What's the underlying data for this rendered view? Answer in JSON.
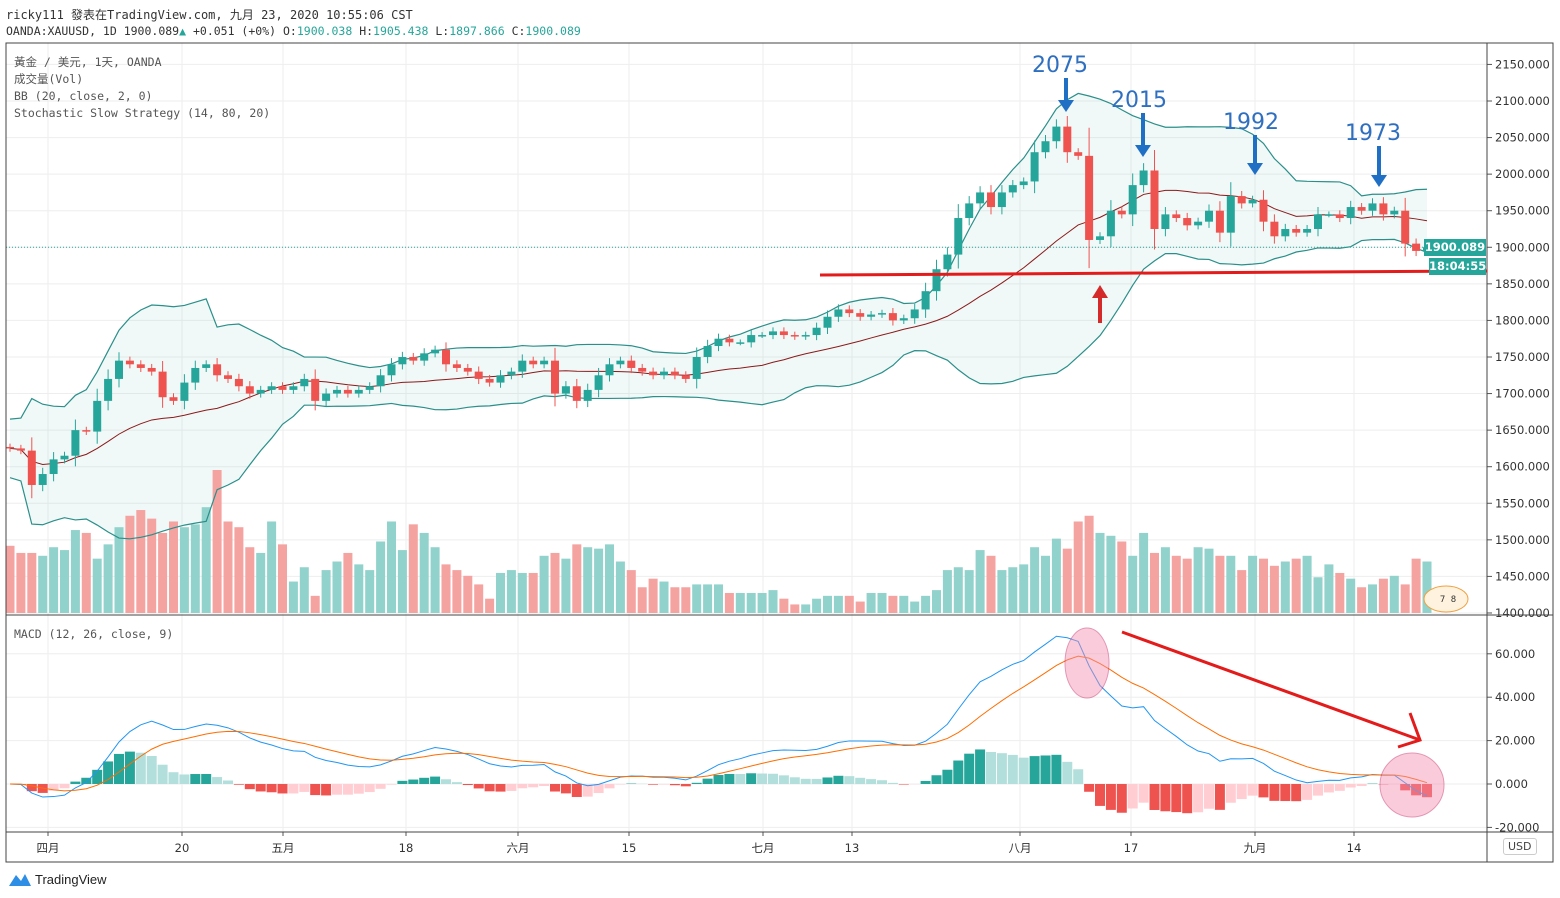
{
  "header": {
    "published": "ricky111 發表在TradingView.com, 九月 23, 2020 10:55:06 CST",
    "symbol": "OANDA:XAUUSD, 1D 1900.089",
    "change": "+0.051 (+0%)",
    "o_label": "O:",
    "o": "1900.038",
    "h_label": "H:",
    "h": "1905.438",
    "l_label": "L:",
    "l": "1897.866",
    "c_label": "C:",
    "c": "1900.089"
  },
  "legend": [
    "黃金 / 美元, 1天, OANDA",
    "成交量(Vol)",
    "BB (20, close, 2, 0)",
    "Stochastic Slow Strategy (14, 80, 20)"
  ],
  "macd_legend": "MACD (12, 26, close, 9)",
  "currency": "USD",
  "last_price": "1900.089",
  "countdown": "18:04:55",
  "event_badge": "7 8",
  "annotations": {
    "peaks": [
      "2075",
      "2015",
      "1992",
      "1973"
    ]
  },
  "logo": "TradingView",
  "colors": {
    "up": "#26a69a",
    "down": "#ef5350",
    "bb": "#2a8f8a",
    "basis": "#8b1a1a",
    "macd": "#2196f3",
    "signal": "#ff6d00",
    "support": "#e31b1b",
    "annotation": "#2f6fc0"
  },
  "chart_data": {
    "type": "candlestick",
    "symbol": "XAUUSD",
    "timeframe": "1D",
    "x_tick_labels": [
      "四月",
      "20",
      "五月",
      "18",
      "六月",
      "15",
      "七月",
      "13",
      "八月",
      "17",
      "九月",
      "14"
    ],
    "price_axis": {
      "ticks": [
        "2150.000",
        "2100.000",
        "2050.000",
        "2000.000",
        "1950.000",
        "1900.000",
        "1850.000",
        "1800.000",
        "1750.000",
        "1700.000",
        "1650.000",
        "1600.000",
        "1550.000",
        "1500.000",
        "1450.000",
        "1400.000"
      ],
      "range": [
        1400,
        2150
      ]
    },
    "macd_axis": {
      "ticks": [
        "60.000",
        "40.000",
        "20.000",
        "0.000",
        "-20.000"
      ],
      "range": [
        -20,
        70
      ]
    },
    "close": [
      1625,
      1622,
      1575,
      1590,
      1610,
      1615,
      1650,
      1648,
      1690,
      1720,
      1745,
      1740,
      1735,
      1730,
      1695,
      1690,
      1715,
      1735,
      1740,
      1725,
      1720,
      1710,
      1700,
      1705,
      1710,
      1705,
      1710,
      1720,
      1690,
      1700,
      1705,
      1700,
      1705,
      1710,
      1725,
      1740,
      1750,
      1745,
      1755,
      1760,
      1740,
      1735,
      1730,
      1720,
      1715,
      1725,
      1730,
      1745,
      1740,
      1745,
      1700,
      1710,
      1690,
      1705,
      1725,
      1740,
      1745,
      1735,
      1730,
      1725,
      1730,
      1725,
      1720,
      1750,
      1765,
      1775,
      1770,
      1770,
      1780,
      1780,
      1785,
      1780,
      1778,
      1780,
      1790,
      1805,
      1815,
      1810,
      1805,
      1808,
      1810,
      1800,
      1803,
      1815,
      1840,
      1870,
      1890,
      1940,
      1960,
      1975,
      1955,
      1975,
      1985,
      1990,
      2030,
      2045,
      2065,
      2030,
      2025,
      1910,
      1915,
      1950,
      1945,
      1985,
      2005,
      1925,
      1945,
      1940,
      1930,
      1935,
      1950,
      1920,
      1970,
      1960,
      1965,
      1935,
      1915,
      1925,
      1920,
      1925,
      1945,
      1945,
      1940,
      1955,
      1950,
      1960,
      1945,
      1950,
      1905,
      1895,
      1900.089
    ],
    "volume_relative": [
      47,
      42,
      42,
      40,
      46,
      44,
      58,
      56,
      38,
      48,
      60,
      68,
      72,
      66,
      56,
      64,
      60,
      62,
      74,
      100,
      64,
      60,
      46,
      42,
      64,
      48,
      22,
      32,
      12,
      30,
      36,
      42,
      34,
      30,
      50,
      64,
      44,
      62,
      56,
      46,
      34,
      30,
      26,
      20,
      10,
      28,
      30,
      28,
      28,
      40,
      42,
      38,
      48,
      46,
      45,
      48,
      36,
      30,
      18,
      24,
      22,
      18,
      18,
      20,
      20,
      20,
      14,
      14,
      14,
      14,
      16,
      10,
      6,
      6,
      10,
      12,
      12,
      12,
      8,
      14,
      14,
      12,
      12,
      8,
      12,
      16,
      30,
      32,
      30,
      44,
      40,
      30,
      32,
      34,
      46,
      40,
      52,
      45,
      64,
      68,
      56,
      54,
      50,
      40,
      56,
      42,
      46,
      40,
      38,
      46,
      45,
      40,
      40,
      30,
      40,
      38,
      33,
      36,
      38,
      40,
      25,
      34,
      28,
      24,
      18,
      20,
      24,
      26,
      20,
      38,
      36
    ],
    "support_level": 1862,
    "bb": {
      "length": 20,
      "mult": 2
    },
    "macd": {
      "fast": 12,
      "slow": 26,
      "signal": 9
    }
  }
}
